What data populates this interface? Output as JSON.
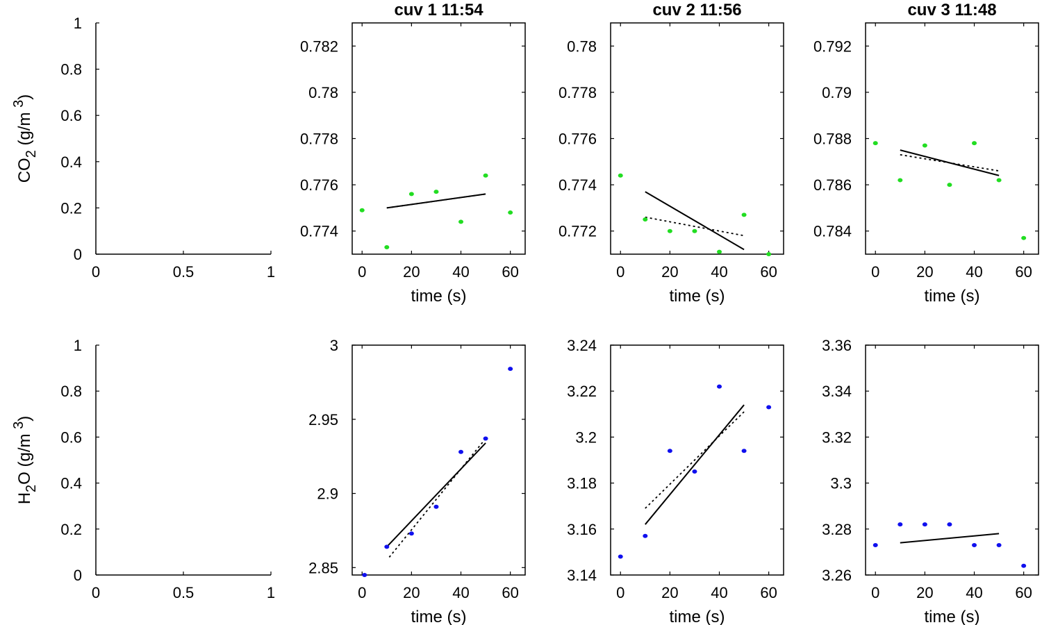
{
  "chart_data": [
    {
      "id": "co2-empty",
      "type": "scatter",
      "title": "",
      "xlabel": "",
      "ylabel": {
        "base": "CO",
        "sub": "2",
        "rest": " (g/m ",
        "sup": "3",
        "end": ")"
      },
      "xlim": [
        0,
        1
      ],
      "ylim": [
        0,
        1
      ],
      "xticks": [
        0,
        0.5,
        1
      ],
      "xtick_labels": [
        "0",
        "0.5",
        "1"
      ],
      "yticks": [
        0,
        0.2,
        0.4,
        0.6,
        0.8,
        1
      ],
      "ytick_labels": [
        "0",
        "0.2",
        "0.4",
        "0.6",
        "0.8",
        "1"
      ],
      "boxed": false,
      "points": [],
      "lines": []
    },
    {
      "id": "co2-cuv1",
      "type": "scatter",
      "title": "cuv 1 11:54",
      "xlabel": "time (s)",
      "xlim": [
        -4,
        66
      ],
      "ylim": [
        0.773,
        0.783
      ],
      "xticks": [
        0,
        20,
        40,
        60
      ],
      "xtick_labels": [
        "0",
        "20",
        "40",
        "60"
      ],
      "yticks": [
        0.774,
        0.776,
        0.778,
        0.78,
        0.782
      ],
      "ytick_labels": [
        "0.774",
        "0.776",
        "0.778",
        "0.78",
        "0.782"
      ],
      "boxed": true,
      "point_color": "#22dd22",
      "points": [
        [
          0,
          0.7749
        ],
        [
          10,
          0.7733
        ],
        [
          20,
          0.7756
        ],
        [
          30,
          0.7757
        ],
        [
          40,
          0.7744
        ],
        [
          50,
          0.7764
        ],
        [
          60,
          0.7748
        ]
      ],
      "lines": [
        {
          "style": "solid",
          "x": [
            10,
            50
          ],
          "y": [
            0.775,
            0.7756
          ]
        },
        {
          "style": "dotted",
          "x": [
            10,
            50
          ],
          "y": [
            0.775,
            0.7756
          ]
        }
      ]
    },
    {
      "id": "co2-cuv2",
      "type": "scatter",
      "title": "cuv 2 11:56",
      "xlabel": "time (s)",
      "xlim": [
        -4,
        66
      ],
      "ylim": [
        0.771,
        0.781
      ],
      "xticks": [
        0,
        20,
        40,
        60
      ],
      "xtick_labels": [
        "0",
        "20",
        "40",
        "60"
      ],
      "yticks": [
        0.772,
        0.774,
        0.776,
        0.778,
        0.78
      ],
      "ytick_labels": [
        "0.772",
        "0.774",
        "0.776",
        "0.778",
        "0.78"
      ],
      "boxed": true,
      "point_color": "#22dd22",
      "points": [
        [
          0,
          0.7744
        ],
        [
          10,
          0.7725
        ],
        [
          20,
          0.772
        ],
        [
          30,
          0.772
        ],
        [
          40,
          0.7711
        ],
        [
          50,
          0.7727
        ],
        [
          60,
          0.771
        ]
      ],
      "lines": [
        {
          "style": "solid",
          "x": [
            10,
            50
          ],
          "y": [
            0.7737,
            0.7712
          ]
        },
        {
          "style": "dotted",
          "x": [
            10,
            50
          ],
          "y": [
            0.7726,
            0.7718
          ]
        }
      ]
    },
    {
      "id": "co2-cuv3",
      "type": "scatter",
      "title": "cuv 3 11:48",
      "xlabel": "time (s)",
      "xlim": [
        -4,
        66
      ],
      "ylim": [
        0.783,
        0.793
      ],
      "xticks": [
        0,
        20,
        40,
        60
      ],
      "xtick_labels": [
        "0",
        "20",
        "40",
        "60"
      ],
      "yticks": [
        0.784,
        0.786,
        0.788,
        0.79,
        0.792
      ],
      "ytick_labels": [
        "0.784",
        "0.786",
        "0.788",
        "0.79",
        "0.792"
      ],
      "boxed": true,
      "point_color": "#22dd22",
      "points": [
        [
          0,
          0.7878
        ],
        [
          10,
          0.7862
        ],
        [
          20,
          0.7877
        ],
        [
          30,
          0.786
        ],
        [
          40,
          0.7878
        ],
        [
          50,
          0.7862
        ],
        [
          60,
          0.7837
        ]
      ],
      "lines": [
        {
          "style": "solid",
          "x": [
            10,
            50
          ],
          "y": [
            0.7875,
            0.7864
          ]
        },
        {
          "style": "dotted",
          "x": [
            10,
            50
          ],
          "y": [
            0.7873,
            0.7866
          ]
        }
      ]
    },
    {
      "id": "h2o-empty",
      "type": "scatter",
      "title": "",
      "xlabel": "",
      "ylabel": {
        "base": "H",
        "sub": "2",
        "rest": "O (g/m ",
        "sup": "3",
        "end": ")"
      },
      "xlim": [
        0,
        1
      ],
      "ylim": [
        0,
        1
      ],
      "xticks": [
        0,
        0.5,
        1
      ],
      "xtick_labels": [
        "0",
        "0.5",
        "1"
      ],
      "yticks": [
        0,
        0.2,
        0.4,
        0.6,
        0.8,
        1
      ],
      "ytick_labels": [
        "0",
        "0.2",
        "0.4",
        "0.6",
        "0.8",
        "1"
      ],
      "boxed": false,
      "points": [],
      "lines": []
    },
    {
      "id": "h2o-cuv1",
      "type": "scatter",
      "title": "",
      "xlabel": "time (s)",
      "xlim": [
        -4,
        66
      ],
      "ylim": [
        2.845,
        3.0
      ],
      "xticks": [
        0,
        20,
        40,
        60
      ],
      "xtick_labels": [
        "0",
        "20",
        "40",
        "60"
      ],
      "yticks": [
        2.85,
        2.9,
        2.95,
        3
      ],
      "ytick_labels": [
        "2.85",
        "2.9",
        "2.95",
        "3"
      ],
      "boxed": true,
      "point_color": "#1010ee",
      "points": [
        [
          1,
          2.845
        ],
        [
          10,
          2.864
        ],
        [
          20,
          2.873
        ],
        [
          30,
          2.891
        ],
        [
          40,
          2.928
        ],
        [
          50,
          2.937
        ],
        [
          60,
          2.984
        ]
      ],
      "lines": [
        {
          "style": "solid",
          "x": [
            10,
            50
          ],
          "y": [
            2.864,
            2.934
          ]
        },
        {
          "style": "dotted",
          "x": [
            11,
            50
          ],
          "y": [
            2.857,
            2.937
          ]
        }
      ]
    },
    {
      "id": "h2o-cuv2",
      "type": "scatter",
      "title": "",
      "xlabel": "time (s)",
      "xlim": [
        -4,
        66
      ],
      "ylim": [
        3.14,
        3.24
      ],
      "xticks": [
        0,
        20,
        40,
        60
      ],
      "xtick_labels": [
        "0",
        "20",
        "40",
        "60"
      ],
      "yticks": [
        3.14,
        3.16,
        3.18,
        3.2,
        3.22,
        3.24
      ],
      "ytick_labels": [
        "3.14",
        "3.16",
        "3.18",
        "3.2",
        "3.22",
        "3.24"
      ],
      "boxed": true,
      "point_color": "#1010ee",
      "points": [
        [
          0,
          3.148
        ],
        [
          10,
          3.157
        ],
        [
          20,
          3.194
        ],
        [
          30,
          3.185
        ],
        [
          40,
          3.222
        ],
        [
          50,
          3.194
        ],
        [
          60,
          3.213
        ]
      ],
      "lines": [
        {
          "style": "solid",
          "x": [
            10,
            50
          ],
          "y": [
            3.162,
            3.214
          ]
        },
        {
          "style": "dotted",
          "x": [
            10,
            50
          ],
          "y": [
            3.169,
            3.211
          ]
        }
      ]
    },
    {
      "id": "h2o-cuv3",
      "type": "scatter",
      "title": "",
      "xlabel": "time (s)",
      "xlim": [
        -4,
        66
      ],
      "ylim": [
        3.26,
        3.36
      ],
      "xticks": [
        0,
        20,
        40,
        60
      ],
      "xtick_labels": [
        "0",
        "20",
        "40",
        "60"
      ],
      "yticks": [
        3.26,
        3.28,
        3.3,
        3.32,
        3.34,
        3.36
      ],
      "ytick_labels": [
        "3.26",
        "3.28",
        "3.3",
        "3.32",
        "3.34",
        "3.36"
      ],
      "boxed": true,
      "point_color": "#1010ee",
      "points": [
        [
          0,
          3.273
        ],
        [
          10,
          3.282
        ],
        [
          20,
          3.282
        ],
        [
          30,
          3.282
        ],
        [
          40,
          3.273
        ],
        [
          50,
          3.273
        ],
        [
          60,
          3.264
        ]
      ],
      "lines": [
        {
          "style": "solid",
          "x": [
            10,
            50
          ],
          "y": [
            3.274,
            3.278
          ]
        }
      ]
    }
  ]
}
